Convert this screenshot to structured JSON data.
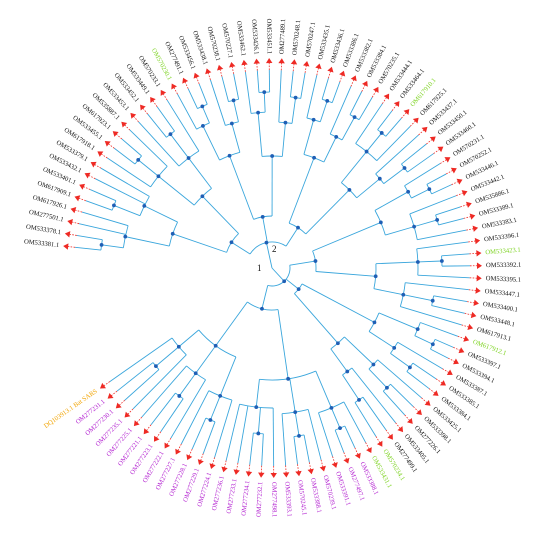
{
  "colors": {
    "branch": "#3aa6dc",
    "leader": "#ee2a24",
    "node": "#1f5fb5",
    "group_default": "#111111",
    "group_magenta": "#b21fd0",
    "group_green": "#7dd321",
    "group_orange": "#f2a400"
  },
  "root_labels": {
    "left": "1",
    "right": "2"
  },
  "leaves": [
    {
      "label": "OM533381.1",
      "group": "default"
    },
    {
      "label": "OM533378.1",
      "group": "default"
    },
    {
      "label": "OM277501.1",
      "group": "default"
    },
    {
      "label": "OM617926.1",
      "group": "default"
    },
    {
      "label": "OM617909.1",
      "group": "default"
    },
    {
      "label": "OM533401.1",
      "group": "default"
    },
    {
      "label": "OM533432.1",
      "group": "default"
    },
    {
      "label": "OM533379.1",
      "group": "default"
    },
    {
      "label": "OM617918.1",
      "group": "default"
    },
    {
      "label": "OM533455.1",
      "group": "default"
    },
    {
      "label": "OM617923.1",
      "group": "default"
    },
    {
      "label": "OM535887.1",
      "group": "default"
    },
    {
      "label": "OM533453.1",
      "group": "default"
    },
    {
      "label": "OM533452.1",
      "group": "default"
    },
    {
      "label": "OM533449.1",
      "group": "default"
    },
    {
      "label": "OM570233.1",
      "group": "default"
    },
    {
      "label": "OM570230.1",
      "group": "green"
    },
    {
      "label": "OM277491.1",
      "group": "default"
    },
    {
      "label": "OM533456.1",
      "group": "default"
    },
    {
      "label": "OM533438.1",
      "group": "default"
    },
    {
      "label": "OM570238.1",
      "group": "default"
    },
    {
      "label": "OM570227.1",
      "group": "default"
    },
    {
      "label": "OM533462.1",
      "group": "default"
    },
    {
      "label": "OM533426.1",
      "group": "default"
    },
    {
      "label": "OM533451.1",
      "group": "default"
    },
    {
      "label": "OM277489.1",
      "group": "default"
    },
    {
      "label": "OM570248.1",
      "group": "default"
    },
    {
      "label": "OM570247.1",
      "group": "default"
    },
    {
      "label": "OM533435.1",
      "group": "default"
    },
    {
      "label": "OM533436.1",
      "group": "default"
    },
    {
      "label": "OM533386.1",
      "group": "default"
    },
    {
      "label": "OM533382.1",
      "group": "default"
    },
    {
      "label": "OM533384.1",
      "group": "default"
    },
    {
      "label": "OM570235.1",
      "group": "default"
    },
    {
      "label": "OM533444.1",
      "group": "default"
    },
    {
      "label": "OM533464.1",
      "group": "default"
    },
    {
      "label": "OM617910.1",
      "group": "green"
    },
    {
      "label": "OM617925.1",
      "group": "default"
    },
    {
      "label": "OM533437.1",
      "group": "default"
    },
    {
      "label": "OM533450.1",
      "group": "default"
    },
    {
      "label": "OM533460.1",
      "group": "default"
    },
    {
      "label": "OM570231.1",
      "group": "default"
    },
    {
      "label": "OM570252.1",
      "group": "default"
    },
    {
      "label": "OM533446.1",
      "group": "default"
    },
    {
      "label": "OM533442.1",
      "group": "default"
    },
    {
      "label": "OM535886.1",
      "group": "default"
    },
    {
      "label": "OM533389.1",
      "group": "default"
    },
    {
      "label": "OM533383.1",
      "group": "default"
    },
    {
      "label": "OM533396.1",
      "group": "default"
    },
    {
      "label": "OM533423.1",
      "group": "green"
    },
    {
      "label": "OM533392.1",
      "group": "default"
    },
    {
      "label": "OM533395.1",
      "group": "default"
    },
    {
      "label": "OM533447.1",
      "group": "default"
    },
    {
      "label": "OM533400.1",
      "group": "default"
    },
    {
      "label": "OM533448.1",
      "group": "default"
    },
    {
      "label": "OM617913.1",
      "group": "default"
    },
    {
      "label": "OM617912.1",
      "group": "green"
    },
    {
      "label": "OM533397.1",
      "group": "default"
    },
    {
      "label": "OM533394.1",
      "group": "default"
    },
    {
      "label": "OM533387.1",
      "group": "default"
    },
    {
      "label": "OM533385.1",
      "group": "default"
    },
    {
      "label": "OM533384.1",
      "group": "default"
    },
    {
      "label": "OM533425.1",
      "group": "default"
    },
    {
      "label": "OM533398.1",
      "group": "default"
    },
    {
      "label": "OM277226.1",
      "group": "default"
    },
    {
      "label": "OM533405.1",
      "group": "default"
    },
    {
      "label": "OM277499.1",
      "group": "default"
    },
    {
      "label": "OM570234.1",
      "group": "green"
    },
    {
      "label": "OM533431.1",
      "group": "green"
    },
    {
      "label": "OM533388.1",
      "group": "magenta"
    },
    {
      "label": "OM277497.1",
      "group": "magenta"
    },
    {
      "label": "OM533391.1",
      "group": "magenta"
    },
    {
      "label": "OM570239.1",
      "group": "magenta"
    },
    {
      "label": "OM533388.1",
      "group": "magenta"
    },
    {
      "label": "OM570245.1",
      "group": "magenta"
    },
    {
      "label": "OM533393.1",
      "group": "magenta"
    },
    {
      "label": "OM277498.1",
      "group": "magenta"
    },
    {
      "label": "OM277232.1",
      "group": "magenta"
    },
    {
      "label": "OM277234.1",
      "group": "magenta"
    },
    {
      "label": "OM277233.1",
      "group": "magenta"
    },
    {
      "label": "OM277236.1",
      "group": "magenta"
    },
    {
      "label": "OM277224.1",
      "group": "magenta"
    },
    {
      "label": "OM277229.1",
      "group": "magenta"
    },
    {
      "label": "OM277228.1",
      "group": "magenta"
    },
    {
      "label": "OM277227.1",
      "group": "magenta"
    },
    {
      "label": "OM277222.1",
      "group": "magenta"
    },
    {
      "label": "OM277223.1",
      "group": "magenta"
    },
    {
      "label": "OM277221.1",
      "group": "magenta"
    },
    {
      "label": "OM277225.1",
      "group": "magenta"
    },
    {
      "label": "OM277235.1",
      "group": "magenta"
    },
    {
      "label": "OM277230.1",
      "group": "magenta"
    },
    {
      "label": "OM277231.1",
      "group": "magenta"
    },
    {
      "label": "DQ103913.1 Bat SARS",
      "group": "orange"
    }
  ]
}
